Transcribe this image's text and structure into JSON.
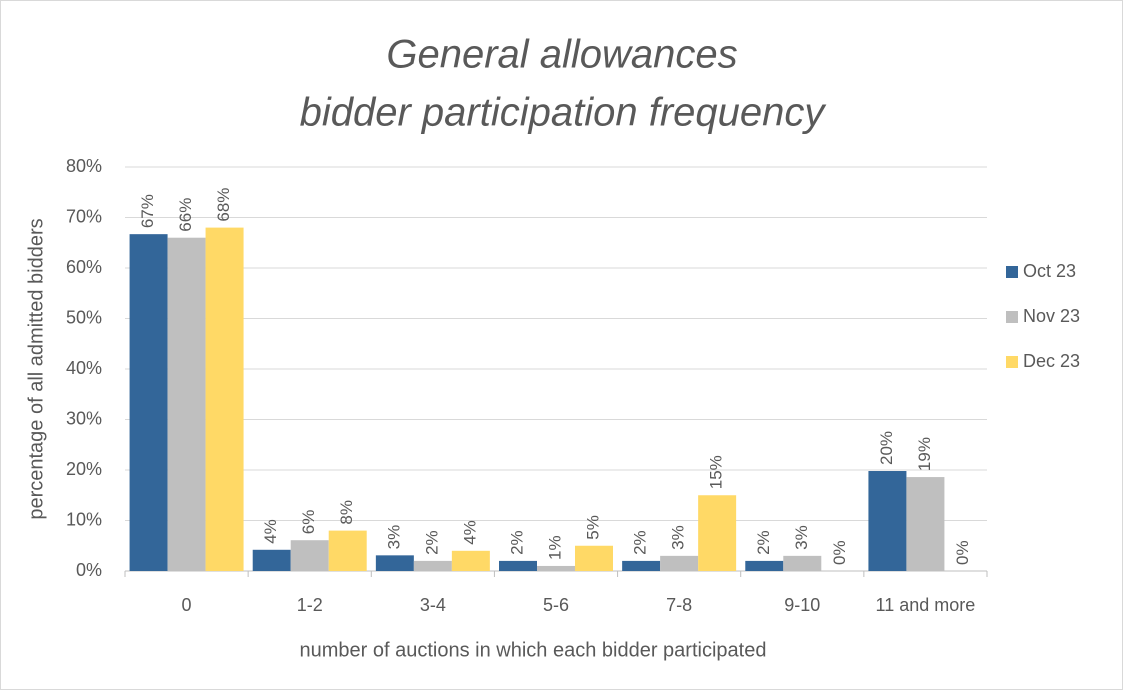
{
  "chart_data": {
    "type": "bar",
    "title": [
      "General allowances",
      "bidder participation frequency"
    ],
    "x_label": "number of auctions in which each bidder participated",
    "y_label": "percentage of all admitted bidders",
    "categories": [
      "0",
      "1-2",
      "3-4",
      "5-6",
      "7-8",
      "9-10",
      "11 and more"
    ],
    "series": [
      {
        "name": "Oct 23",
        "color": "#336699",
        "values": [
          66.7,
          4.2,
          3.1,
          2,
          2,
          2,
          19.8
        ],
        "value_labels": [
          "67%",
          "4%",
          "3%",
          "2%",
          "2%",
          "2%",
          "20%"
        ]
      },
      {
        "name": "Nov 23",
        "color": "#bfbfbf",
        "values": [
          66,
          6.1,
          2,
          1,
          3,
          3,
          18.6
        ],
        "value_labels": [
          "66%",
          "6%",
          "2%",
          "1%",
          "3%",
          "3%",
          "19%"
        ]
      },
      {
        "name": "Dec 23",
        "color": "#ffd966",
        "values": [
          68,
          8,
          4,
          5,
          15,
          0,
          0
        ],
        "value_labels": [
          "68%",
          "8%",
          "4%",
          "5%",
          "15%",
          "0%",
          "0%"
        ]
      }
    ],
    "ylim": [
      0,
      80
    ],
    "yticks": [
      {
        "value": 0,
        "label": "0%"
      },
      {
        "value": 10,
        "label": "10%"
      },
      {
        "value": 20,
        "label": "20%"
      },
      {
        "value": 30,
        "label": "30%"
      },
      {
        "value": 40,
        "label": "40%"
      },
      {
        "value": 50,
        "label": "50%"
      },
      {
        "value": 60,
        "label": "60%"
      },
      {
        "value": 70,
        "label": "70%"
      },
      {
        "value": 80,
        "label": "80%"
      }
    ],
    "grid": true,
    "legend": "right"
  }
}
